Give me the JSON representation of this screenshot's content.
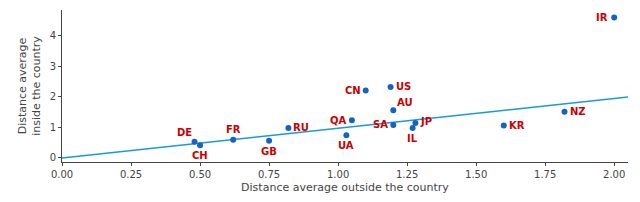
{
  "chart_data": {
    "type": "scatter",
    "x_label": "Distance average outside the country",
    "y_label": "Distance average\ninside the country",
    "series": [
      {
        "type": "line",
        "color": "#1a9ad4",
        "x": [
          0.0,
          2.05
        ],
        "values": [
          -0.02,
          1.99
        ]
      },
      {
        "type": "scatter",
        "color": "#1565c0",
        "x": [
          2.0,
          1.19,
          1.1,
          1.2,
          1.05,
          1.2,
          1.28,
          1.27,
          1.6,
          1.82,
          0.82,
          1.03,
          0.75,
          0.62,
          0.48,
          0.5
        ],
        "values": [
          4.6,
          2.32,
          2.2,
          1.55,
          1.22,
          1.07,
          1.13,
          0.97,
          1.05,
          1.5,
          0.97,
          0.73,
          0.55,
          0.58,
          0.52,
          0.4
        ]
      }
    ],
    "annotations": [
      {
        "text": "IR",
        "x": 2.0,
        "y": 4.6,
        "color": "#cc0000"
      },
      {
        "text": "US",
        "x": 1.19,
        "y": 2.32,
        "color": "#cc0000"
      },
      {
        "text": "CN",
        "x": 1.1,
        "y": 2.2,
        "color": "#cc0000"
      },
      {
        "text": "AU",
        "x": 1.2,
        "y": 1.55,
        "color": "#cc0000"
      },
      {
        "text": "QA",
        "x": 1.05,
        "y": 1.22,
        "color": "#cc0000"
      },
      {
        "text": "SA",
        "x": 1.2,
        "y": 1.07,
        "color": "#cc0000"
      },
      {
        "text": "JP",
        "x": 1.28,
        "y": 1.13,
        "color": "#cc0000"
      },
      {
        "text": "IL",
        "x": 1.27,
        "y": 0.97,
        "color": "#cc0000"
      },
      {
        "text": "KR",
        "x": 1.6,
        "y": 1.05,
        "color": "#cc0000"
      },
      {
        "text": "NZ",
        "x": 1.82,
        "y": 1.5,
        "color": "#cc0000"
      },
      {
        "text": "RU",
        "x": 0.82,
        "y": 0.97,
        "color": "#cc0000"
      },
      {
        "text": "UA",
        "x": 1.03,
        "y": 0.73,
        "color": "#cc0000"
      },
      {
        "text": "GB",
        "x": 0.75,
        "y": 0.55,
        "color": "#cc0000"
      },
      {
        "text": "FR",
        "x": 0.62,
        "y": 0.58,
        "color": "#cc0000"
      },
      {
        "text": "DE",
        "x": 0.48,
        "y": 0.52,
        "color": "#cc0000"
      },
      {
        "text": "CH",
        "x": 0.5,
        "y": 0.4,
        "color": "#cc0000"
      }
    ],
    "xlim": [
      0.0,
      2.05
    ],
    "ylim": [
      -0.15,
      4.85
    ],
    "xticks": [
      {
        "value": 0.0,
        "label": "0.00"
      },
      0.25,
      {
        "value": 0.5,
        "label": "0.50"
      },
      0.75,
      {
        "value": 1.0,
        "label": "1.00"
      },
      1.25,
      {
        "value": 1.5,
        "label": "1.50"
      },
      1.75,
      {
        "value": 2.0,
        "label": "2.00"
      }
    ],
    "yticks": [
      0,
      1,
      2,
      3,
      4
    ],
    "grid": false
  }
}
